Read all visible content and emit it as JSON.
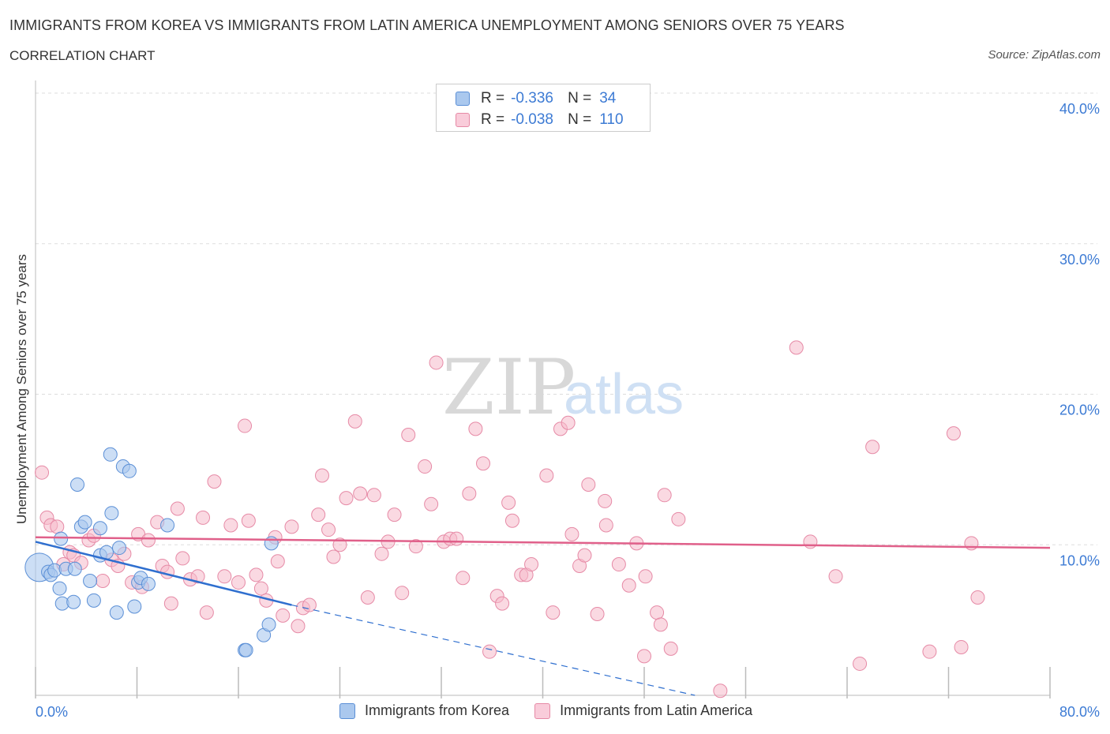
{
  "chart_data": {
    "type": "scatter",
    "title": "IMMIGRANTS FROM KOREA VS IMMIGRANTS FROM LATIN AMERICA UNEMPLOYMENT AMONG SENIORS OVER 75 YEARS",
    "subtitle": "CORRELATION CHART",
    "source": "Source: ZipAtlas.com",
    "xlabel": "",
    "ylabel": "Unemployment Among Seniors over 75 years",
    "xlim": [
      0,
      80
    ],
    "ylim": [
      0,
      40
    ],
    "x_tick_labels": [
      "0.0%",
      "80.0%"
    ],
    "y_tick_labels": [
      "10.0%",
      "20.0%",
      "30.0%",
      "40.0%"
    ],
    "y_ticks": [
      10,
      20,
      30,
      40
    ],
    "watermark": "ZIPatlas",
    "colors": {
      "korea_fill": "#aac8ee",
      "korea_stroke": "#5b8fd6",
      "korea_line": "#2f6fcf",
      "latin_fill": "#f5b9cb",
      "latin_stroke": "#e68aa6",
      "latin_line": "#e0608a",
      "axis_label": "#3d7bd4"
    },
    "legend": [
      {
        "r_label": "R =",
        "r_value": "-0.336",
        "n_label": "N =",
        "n_value": "34"
      },
      {
        "r_label": "R =",
        "r_value": "-0.038",
        "n_label": "N =",
        "n_value": "110"
      }
    ],
    "series": [
      {
        "name": "Immigrants from Korea",
        "points": [
          [
            0.3,
            8.5
          ],
          [
            1.0,
            8.2
          ],
          [
            1.2,
            8.0
          ],
          [
            1.5,
            8.3
          ],
          [
            1.9,
            7.1
          ],
          [
            2.1,
            6.1
          ],
          [
            2.0,
            10.4
          ],
          [
            3.0,
            6.2
          ],
          [
            2.4,
            8.4
          ],
          [
            3.1,
            8.4
          ],
          [
            3.3,
            14.0
          ],
          [
            3.6,
            11.2
          ],
          [
            3.9,
            11.5
          ],
          [
            4.3,
            7.6
          ],
          [
            4.6,
            6.3
          ],
          [
            5.1,
            9.3
          ],
          [
            5.1,
            11.1
          ],
          [
            5.6,
            9.5
          ],
          [
            5.9,
            16.0
          ],
          [
            6.0,
            12.1
          ],
          [
            6.4,
            5.5
          ],
          [
            6.6,
            9.8
          ],
          [
            6.9,
            15.2
          ],
          [
            7.4,
            14.9
          ],
          [
            7.8,
            5.9
          ],
          [
            8.1,
            7.5
          ],
          [
            8.3,
            7.8
          ],
          [
            8.9,
            7.4
          ],
          [
            10.4,
            11.3
          ],
          [
            16.5,
            3.0
          ],
          [
            16.6,
            3.0
          ],
          [
            18.0,
            4.0
          ],
          [
            18.4,
            4.7
          ],
          [
            18.6,
            10.1
          ]
        ],
        "trend": {
          "x1": 0,
          "y1": 10.2,
          "x2": 20.2,
          "y2": 6.0,
          "dash_x2": 52,
          "dash_y2": 0
        }
      },
      {
        "name": "Immigrants from Latin America",
        "points": [
          [
            0.5,
            14.8
          ],
          [
            0.9,
            11.8
          ],
          [
            1.2,
            11.3
          ],
          [
            1.7,
            11.2
          ],
          [
            2.2,
            8.7
          ],
          [
            2.7,
            9.5
          ],
          [
            3.0,
            9.3
          ],
          [
            3.6,
            8.8
          ],
          [
            4.2,
            10.3
          ],
          [
            4.6,
            10.6
          ],
          [
            5.3,
            7.6
          ],
          [
            6.0,
            9.0
          ],
          [
            6.5,
            8.6
          ],
          [
            7.0,
            9.4
          ],
          [
            7.6,
            7.5
          ],
          [
            8.1,
            10.7
          ],
          [
            8.4,
            7.2
          ],
          [
            8.9,
            10.3
          ],
          [
            9.6,
            11.5
          ],
          [
            10.0,
            8.6
          ],
          [
            10.4,
            8.2
          ],
          [
            10.7,
            6.1
          ],
          [
            11.2,
            12.4
          ],
          [
            11.6,
            9.1
          ],
          [
            12.2,
            7.7
          ],
          [
            12.8,
            7.9
          ],
          [
            13.2,
            11.8
          ],
          [
            13.5,
            5.5
          ],
          [
            14.1,
            14.2
          ],
          [
            14.9,
            7.9
          ],
          [
            15.4,
            11.3
          ],
          [
            16.0,
            7.5
          ],
          [
            16.5,
            17.9
          ],
          [
            16.8,
            11.6
          ],
          [
            17.4,
            8.0
          ],
          [
            17.8,
            7.1
          ],
          [
            18.2,
            6.3
          ],
          [
            18.9,
            10.5
          ],
          [
            19.1,
            8.9
          ],
          [
            19.5,
            5.3
          ],
          [
            20.2,
            11.2
          ],
          [
            20.7,
            4.6
          ],
          [
            21.1,
            5.8
          ],
          [
            21.6,
            6.0
          ],
          [
            22.3,
            12.0
          ],
          [
            22.6,
            14.6
          ],
          [
            23.1,
            11.0
          ],
          [
            23.5,
            9.2
          ],
          [
            24.0,
            10.0
          ],
          [
            24.5,
            13.1
          ],
          [
            25.2,
            18.2
          ],
          [
            25.6,
            13.4
          ],
          [
            26.2,
            6.5
          ],
          [
            26.7,
            13.3
          ],
          [
            27.3,
            9.4
          ],
          [
            27.8,
            10.2
          ],
          [
            28.3,
            12.0
          ],
          [
            28.9,
            6.8
          ],
          [
            29.4,
            17.3
          ],
          [
            30.0,
            9.9
          ],
          [
            30.7,
            15.2
          ],
          [
            31.2,
            12.7
          ],
          [
            31.6,
            22.1
          ],
          [
            32.2,
            10.2
          ],
          [
            32.7,
            10.4
          ],
          [
            33.2,
            10.4
          ],
          [
            33.7,
            7.8
          ],
          [
            34.2,
            13.4
          ],
          [
            34.7,
            17.7
          ],
          [
            35.3,
            15.4
          ],
          [
            35.8,
            2.9
          ],
          [
            36.4,
            6.6
          ],
          [
            36.8,
            6.1
          ],
          [
            37.3,
            12.8
          ],
          [
            37.6,
            11.6
          ],
          [
            38.3,
            8.0
          ],
          [
            38.7,
            8.0
          ],
          [
            39.1,
            8.7
          ],
          [
            40.3,
            14.6
          ],
          [
            40.8,
            5.5
          ],
          [
            41.4,
            17.7
          ],
          [
            42.0,
            18.1
          ],
          [
            42.3,
            10.7
          ],
          [
            42.9,
            8.6
          ],
          [
            43.3,
            9.3
          ],
          [
            43.6,
            14.0
          ],
          [
            44.3,
            5.4
          ],
          [
            44.9,
            12.9
          ],
          [
            45.0,
            11.3
          ],
          [
            46.0,
            8.7
          ],
          [
            46.8,
            7.3
          ],
          [
            47.4,
            10.1
          ],
          [
            48.0,
            2.6
          ],
          [
            48.1,
            7.9
          ],
          [
            49.0,
            5.5
          ],
          [
            49.3,
            4.7
          ],
          [
            49.6,
            13.3
          ],
          [
            50.1,
            3.1
          ],
          [
            50.7,
            11.7
          ],
          [
            54.0,
            0.3
          ],
          [
            60.0,
            23.1
          ],
          [
            61.1,
            10.2
          ],
          [
            63.1,
            7.9
          ],
          [
            65.0,
            2.1
          ],
          [
            66.0,
            16.5
          ],
          [
            70.5,
            2.9
          ],
          [
            72.4,
            17.4
          ],
          [
            73.0,
            3.2
          ],
          [
            73.8,
            10.1
          ],
          [
            74.3,
            6.5
          ]
        ],
        "trend": {
          "x1": 0,
          "y1": 10.5,
          "x2": 80,
          "y2": 9.8
        }
      }
    ]
  }
}
